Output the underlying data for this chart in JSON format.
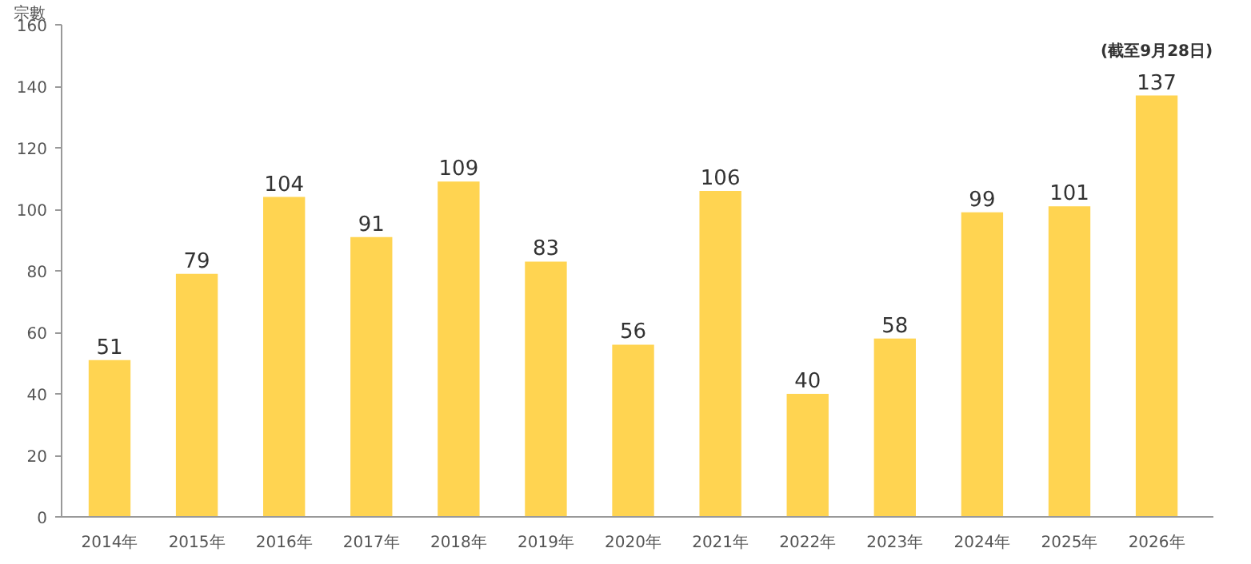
{
  "chart_data": {
    "type": "bar",
    "ylabel": "宗數",
    "categories": [
      "2014年",
      "2015年",
      "2016年",
      "2017年",
      "2018年",
      "2019年",
      "2020年",
      "2021年",
      "2022年",
      "2023年",
      "2024年",
      "2025年",
      "2026年"
    ],
    "values": [
      51,
      79,
      104,
      91,
      109,
      83,
      56,
      106,
      40,
      58,
      99,
      101,
      137
    ],
    "color": "#ffd451",
    "ylim": [
      0,
      160
    ],
    "yticks": [
      0,
      20,
      40,
      60,
      80,
      100,
      120,
      140,
      160
    ],
    "grid": false,
    "data_labels": true,
    "annotations": [
      {
        "text": "(截至9月28日)",
        "x": "2026年",
        "y": 137
      }
    ]
  }
}
